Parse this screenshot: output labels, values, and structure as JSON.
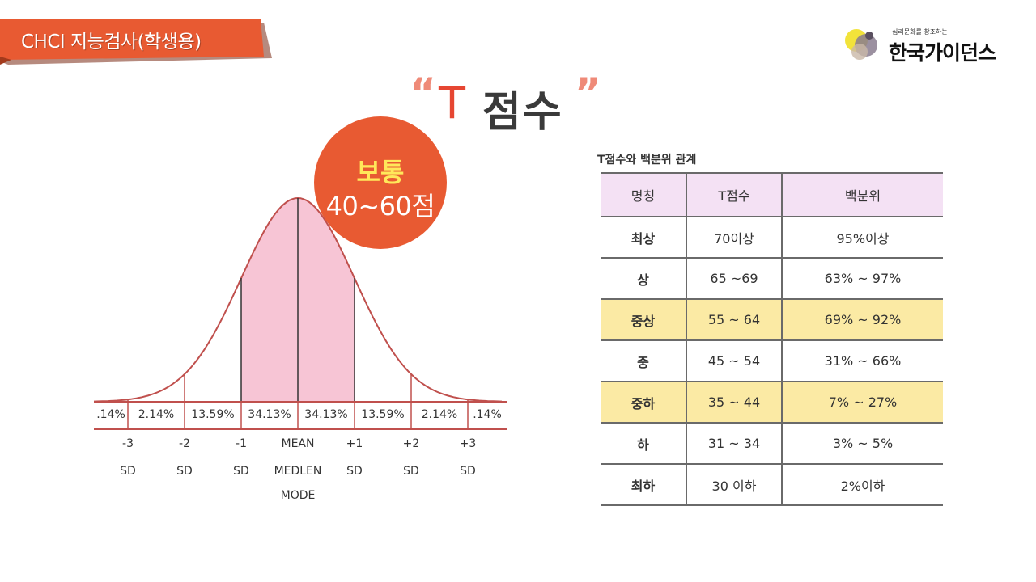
{
  "header": {
    "title": "CHCI 지능검사(학생용)",
    "accent_color": "#e85a32"
  },
  "logo": {
    "tagline": "심리문화를 창조하는",
    "name": "한국가이던스"
  },
  "heading": {
    "open_quote": "“",
    "t": "T",
    "main": "점수",
    "close_quote": "”"
  },
  "callout": {
    "line1": "보통",
    "line2": "40~60점",
    "color": "#e85a32"
  },
  "distribution": {
    "curve_color": "#c0504d",
    "fill_color": "#f7c5d5",
    "segments": [
      {
        "pct": ".14%",
        "highlight": false
      },
      {
        "pct": "2.14%",
        "highlight": false
      },
      {
        "pct": "13.59%",
        "highlight": false
      },
      {
        "pct": "34.13%",
        "highlight": true
      },
      {
        "pct": "34.13%",
        "highlight": true
      },
      {
        "pct": "13.59%",
        "highlight": false
      },
      {
        "pct": "2.14%",
        "highlight": false
      },
      {
        "pct": ".14%",
        "highlight": false
      }
    ],
    "sd_labels": [
      {
        "line1": "-3",
        "line2": "SD",
        "line3": ""
      },
      {
        "line1": "-2",
        "line2": "SD",
        "line3": ""
      },
      {
        "line1": "-1",
        "line2": "SD",
        "line3": ""
      },
      {
        "line1": "MEAN",
        "line2": "MEDLEN",
        "line3": "MODE"
      },
      {
        "line1": "+1",
        "line2": "SD",
        "line3": ""
      },
      {
        "line1": "+2",
        "line2": "SD",
        "line3": ""
      },
      {
        "line1": "+3",
        "line2": "SD",
        "line3": ""
      }
    ]
  },
  "table": {
    "caption": "T점수와 백분위 관계",
    "headers": [
      "명칭",
      "T점수",
      "백분위"
    ],
    "rows": [
      {
        "name": "최상",
        "t": "70이상",
        "pct": "95%이상",
        "highlight": false
      },
      {
        "name": "상",
        "t": "65 ~69",
        "pct": "63% ~ 97%",
        "highlight": false
      },
      {
        "name": "중상",
        "t": "55 ~ 64",
        "pct": "69% ~ 92%",
        "highlight": true
      },
      {
        "name": "중",
        "t": "45 ~ 54",
        "pct": "31% ~ 66%",
        "highlight": false
      },
      {
        "name": "중하",
        "t": "35 ~ 44",
        "pct": "7% ~ 27%",
        "highlight": true
      },
      {
        "name": "하",
        "t": "31 ~ 34",
        "pct": "3% ~ 5%",
        "highlight": false
      },
      {
        "name": "최하",
        "t": "30 이하",
        "pct": "2%이하",
        "highlight": false
      }
    ]
  }
}
